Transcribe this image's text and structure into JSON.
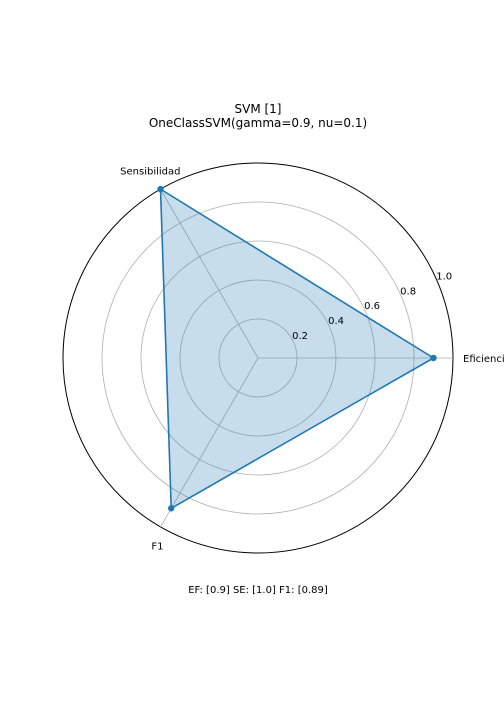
{
  "chart_data": {
    "type": "radar",
    "title": "SVM [1]",
    "subtitle": "OneClassSVM(gamma=0.9, nu=0.1)",
    "categories": [
      "Eficiencia",
      "Sensibilidad",
      "F1"
    ],
    "series": [
      {
        "values": [
          0.9,
          1.0,
          0.89
        ],
        "color": "#1f77b4",
        "fill": "#1f77b4"
      }
    ],
    "rlim": [
      0,
      1.0
    ],
    "rticks": [
      0.2,
      0.4,
      0.6,
      0.8,
      1.0
    ],
    "rtick_labels": [
      "0.2",
      "0.4",
      "0.6",
      "0.8",
      "1.0"
    ],
    "grid": true,
    "caption": "EF: [0.9] SE: [1.0] F1: [0.89]"
  }
}
